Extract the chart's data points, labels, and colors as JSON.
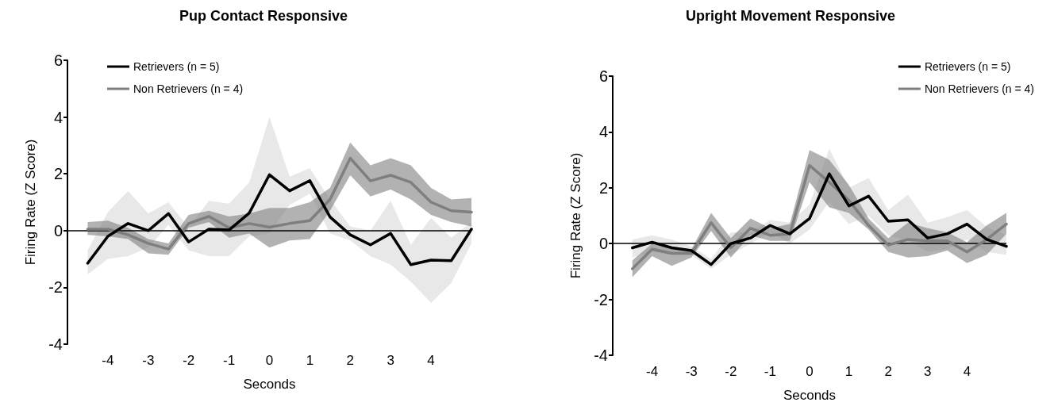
{
  "chart_data": [
    {
      "type": "line",
      "title": "Pup Contact Responsive",
      "xlabel": "Seconds",
      "ylabel": "Firing Rate (Z Score)",
      "xlim": [
        -5,
        5
      ],
      "xticks": [
        -4,
        -3,
        -2,
        -1,
        0,
        1,
        2,
        3,
        4
      ],
      "ylim": [
        -4,
        6
      ],
      "yticks": [
        -4,
        -2,
        0,
        2,
        4,
        6
      ],
      "legend": "top left",
      "grid": false,
      "marker": "none",
      "line_style": "solid",
      "ref_lines": [
        {
          "axis": "y",
          "value": 0,
          "color": "#000000"
        }
      ],
      "x": [
        -4.5,
        -4,
        -3.5,
        -3,
        -2.5,
        -2,
        -1.5,
        -1,
        -0.5,
        0,
        0.5,
        1,
        1.5,
        2,
        2.5,
        3,
        3.5,
        4,
        4.5,
        5
      ],
      "series": [
        {
          "name": "Retrievers (n = 5)",
          "color": "#000000",
          "values": [
            -1.15,
            -0.2,
            0.25,
            0,
            0.6,
            -0.4,
            0.05,
            0.02,
            0.62,
            1.97,
            1.4,
            1.76,
            0.48,
            -0.15,
            -0.5,
            -0.1,
            -1.2,
            -1.04,
            -1.06,
            0.05
          ],
          "upper": [
            -0.7,
            0.65,
            1.4,
            0.6,
            1,
            0.1,
            1.05,
            0.95,
            1.7,
            4,
            1.9,
            2.2,
            1.1,
            0.15,
            0,
            1.05,
            -0.5,
            0.45,
            -0.25,
            0.3
          ],
          "lower": [
            -1.55,
            -1,
            -0.9,
            -0.6,
            0.2,
            -0.7,
            -0.9,
            -0.9,
            -0.2,
            -0.1,
            0.9,
            1.3,
            -0.1,
            -0.35,
            -0.9,
            -1.2,
            -1.8,
            -2.55,
            -1.85,
            -0.45
          ]
        },
        {
          "name": "Non Retrievers (n = 4)",
          "color": "#7f7f80",
          "values": [
            0.05,
            0.05,
            -0.15,
            -0.45,
            -0.65,
            0.25,
            0.5,
            0.1,
            0.25,
            0.12,
            0.25,
            0.35,
            1.1,
            2.55,
            1.75,
            1.95,
            1.7,
            1,
            0.7,
            0.65
          ],
          "upper": [
            0.3,
            0.35,
            0.1,
            -0.3,
            -0.45,
            0.55,
            0.7,
            0.5,
            0.6,
            0.8,
            0.8,
            1,
            1.5,
            3.1,
            2.3,
            2.55,
            2.3,
            1.5,
            1.1,
            1.15
          ],
          "lower": [
            -0.15,
            -0.2,
            -0.3,
            -0.8,
            -0.85,
            0.1,
            0.3,
            -0.25,
            -0.1,
            -0.6,
            -0.35,
            -0.3,
            0.7,
            1.95,
            1.2,
            1.45,
            1.1,
            0.55,
            0.3,
            0.15
          ]
        }
      ]
    },
    {
      "type": "line",
      "title": "Upright Movement Responsive",
      "xlabel": "Seconds",
      "ylabel": "Firing Rate (Z Score)",
      "xlim": [
        -5,
        5
      ],
      "xticks": [
        -4,
        -3,
        -2,
        -1,
        0,
        1,
        2,
        3,
        4
      ],
      "ylim": [
        -4,
        6
      ],
      "yticks": [
        -4,
        -2,
        0,
        2,
        4,
        6
      ],
      "legend": "top right",
      "grid": false,
      "marker": "none",
      "line_style": "solid",
      "ref_lines": [
        {
          "axis": "y",
          "value": 0,
          "color": "#000000"
        }
      ],
      "x": [
        -4.5,
        -4,
        -3.5,
        -3,
        -2.5,
        -2,
        -1.5,
        -1,
        -0.5,
        0,
        0.5,
        1,
        1.5,
        2,
        2.5,
        3,
        3.5,
        4,
        4.5,
        5
      ],
      "series": [
        {
          "name": "Retrievers (n = 5)",
          "color": "#000000",
          "values": [
            -0.15,
            0.05,
            -0.15,
            -0.25,
            -0.75,
            0,
            0.2,
            0.65,
            0.35,
            0.9,
            2.5,
            1.35,
            1.7,
            0.8,
            0.85,
            0.2,
            0.35,
            0.7,
            0.15,
            -0.1
          ],
          "upper": [
            0.15,
            0.3,
            0.15,
            -0.1,
            -0.55,
            0.4,
            0.4,
            0.85,
            0.75,
            1.4,
            3.4,
            2,
            2.35,
            1.2,
            1.75,
            0.75,
            0.95,
            1.2,
            0.6,
            0.3
          ],
          "lower": [
            -0.5,
            -0.3,
            -0.4,
            -0.4,
            -0.9,
            -0.4,
            0,
            0.4,
            0,
            0.5,
            1.5,
            0.7,
            1,
            0.3,
            0.1,
            -0.3,
            -0.2,
            0.15,
            -0.3,
            -0.4
          ]
        },
        {
          "name": "Non Retrievers (n = 4)",
          "color": "#7f7f80",
          "values": [
            -0.9,
            -0.2,
            -0.35,
            -0.35,
            0.75,
            -0.15,
            0.55,
            0.3,
            0.35,
            2.8,
            2.2,
            1.55,
            0.65,
            -0.05,
            0.15,
            0.1,
            0.1,
            -0.3,
            0.15,
            0.7
          ],
          "upper": [
            -0.6,
            0,
            -0.1,
            -0.2,
            1.1,
            0.2,
            0.9,
            0.55,
            0.7,
            3.35,
            3,
            2.1,
            0.9,
            0.2,
            0.75,
            0.55,
            0.4,
            0.05,
            0.65,
            1.1
          ],
          "lower": [
            -1.2,
            -0.45,
            -0.8,
            -0.5,
            0.45,
            -0.5,
            0.3,
            0.1,
            0.1,
            2.2,
            1.3,
            1.1,
            0.5,
            -0.3,
            -0.5,
            -0.45,
            -0.25,
            -0.7,
            -0.4,
            0.35
          ]
        }
      ]
    }
  ]
}
